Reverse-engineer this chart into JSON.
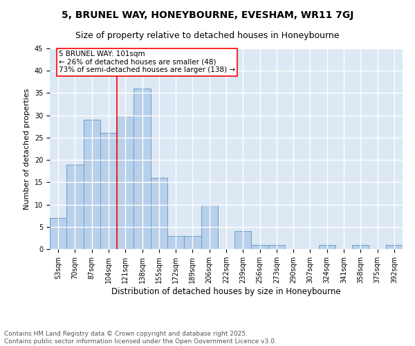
{
  "title1": "5, BRUNEL WAY, HONEYBOURNE, EVESHAM, WR11 7GJ",
  "title2": "Size of property relative to detached houses in Honeybourne",
  "xlabel": "Distribution of detached houses by size in Honeybourne",
  "ylabel": "Number of detached properties",
  "categories": [
    "53sqm",
    "70sqm",
    "87sqm",
    "104sqm",
    "121sqm",
    "138sqm",
    "155sqm",
    "172sqm",
    "189sqm",
    "206sqm",
    "222sqm",
    "239sqm",
    "256sqm",
    "273sqm",
    "290sqm",
    "307sqm",
    "324sqm",
    "341sqm",
    "358sqm",
    "375sqm",
    "392sqm"
  ],
  "values": [
    7,
    19,
    29,
    26,
    30,
    36,
    16,
    3,
    3,
    10,
    0,
    4,
    1,
    1,
    0,
    0,
    1,
    0,
    1,
    0,
    1
  ],
  "bar_color": "#b8d0ea",
  "bar_edge_color": "#6a9ec8",
  "vline_x": 3.5,
  "vline_color": "red",
  "annotation_text": "5 BRUNEL WAY: 101sqm\n← 26% of detached houses are smaller (48)\n73% of semi-detached houses are larger (138) →",
  "annotation_box_color": "white",
  "annotation_box_edge_color": "red",
  "ylim": [
    0,
    45
  ],
  "yticks": [
    0,
    5,
    10,
    15,
    20,
    25,
    30,
    35,
    40,
    45
  ],
  "background_color": "#dde8f5",
  "grid_color": "white",
  "footer_text": "Contains HM Land Registry data © Crown copyright and database right 2025.\nContains public sector information licensed under the Open Government Licence v3.0.",
  "title1_fontsize": 10,
  "title2_fontsize": 9,
  "xlabel_fontsize": 8.5,
  "ylabel_fontsize": 8,
  "tick_fontsize": 7,
  "footer_fontsize": 6.5,
  "annot_fontsize": 7.5
}
